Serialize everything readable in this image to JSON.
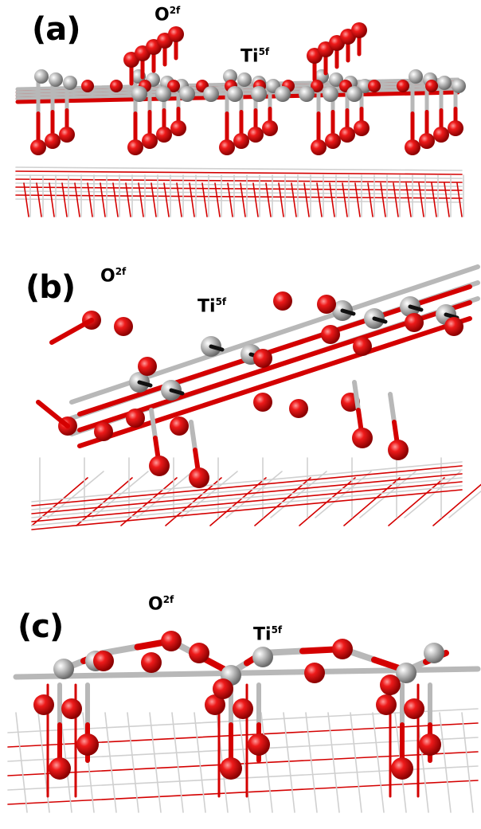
{
  "panels": [
    {
      "id": "a",
      "label": "(a)",
      "o_label": "O",
      "o_sup": "2f",
      "ti_label": "Ti",
      "ti_sup": "5f"
    },
    {
      "id": "b",
      "label": "(b)",
      "o_label": "O",
      "o_sup": "2f",
      "ti_label": "Ti",
      "ti_sup": "5f"
    },
    {
      "id": "c",
      "label": "(c)",
      "o_label": "O",
      "o_sup": "2f",
      "ti_label": "Ti",
      "ti_sup": "5f"
    }
  ],
  "colors": {
    "oxygen": "#dd0f0f",
    "titanium": "#b8b8b8",
    "bond_light": "#d0d0d0",
    "bond_red": "#d40000",
    "label": "#000000"
  }
}
